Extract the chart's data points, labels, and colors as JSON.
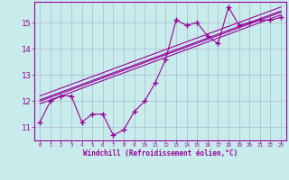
{
  "x": [
    0,
    1,
    2,
    3,
    4,
    5,
    6,
    7,
    8,
    9,
    10,
    11,
    12,
    13,
    14,
    15,
    16,
    17,
    18,
    19,
    20,
    21,
    22,
    23
  ],
  "y_main": [
    11.2,
    12.0,
    12.2,
    12.2,
    11.2,
    11.5,
    11.5,
    10.7,
    10.9,
    11.6,
    12.0,
    12.7,
    13.6,
    15.1,
    14.9,
    15.0,
    14.5,
    14.2,
    15.6,
    14.9,
    15.0,
    15.1,
    15.1,
    15.2
  ],
  "reg_lines": [
    [
      [
        0,
        23
      ],
      [
        11.9,
        15.3
      ]
    ],
    [
      [
        0,
        23
      ],
      [
        12.05,
        15.45
      ]
    ],
    [
      [
        0,
        23
      ],
      [
        12.2,
        15.6
      ]
    ],
    [
      [
        0,
        23
      ],
      [
        12.0,
        15.4
      ]
    ]
  ],
  "color": "#990099",
  "bg_color": "#c8ecec",
  "grid_color": "#aabbcc",
  "ylabel_vals": [
    11,
    12,
    13,
    14,
    15
  ],
  "xlabel_vals": [
    0,
    1,
    2,
    3,
    4,
    5,
    6,
    7,
    8,
    9,
    10,
    11,
    12,
    13,
    14,
    15,
    16,
    17,
    18,
    19,
    20,
    21,
    22,
    23
  ],
  "xlabel": "Windchill (Refroidissement éolien,°C)",
  "ylim": [
    10.5,
    15.8
  ],
  "xlim": [
    -0.5,
    23.5
  ],
  "figsize": [
    3.2,
    2.0
  ],
  "dpi": 100
}
